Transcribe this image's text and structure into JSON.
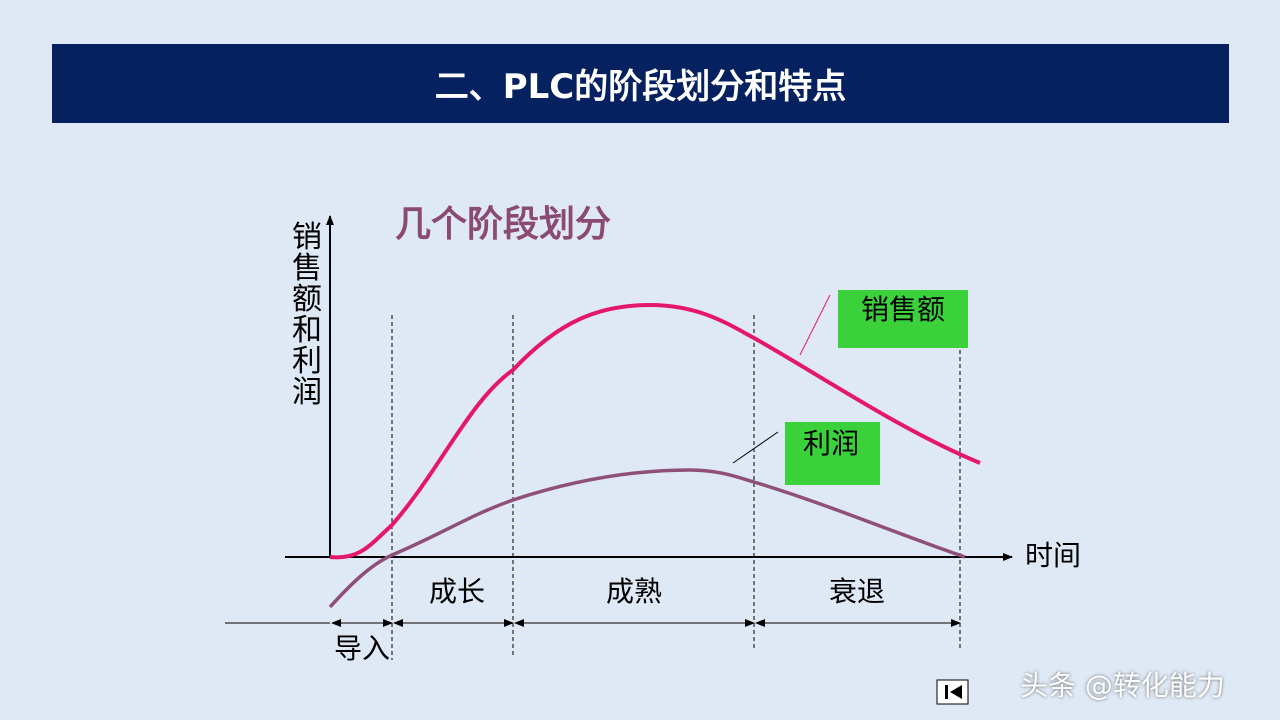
{
  "header": {
    "title": "二、PLC的阶段划分和特点"
  },
  "diagram": {
    "subtitle": "几个阶段划分",
    "y_axis_label": "销售额和利润",
    "x_axis_label": "时间",
    "curve_labels": [
      "销售额",
      "利润"
    ],
    "stages": [
      "导入",
      "成长",
      "成熟",
      "衰退"
    ]
  },
  "footer": {
    "watermark": "头条 @转化能力"
  }
}
